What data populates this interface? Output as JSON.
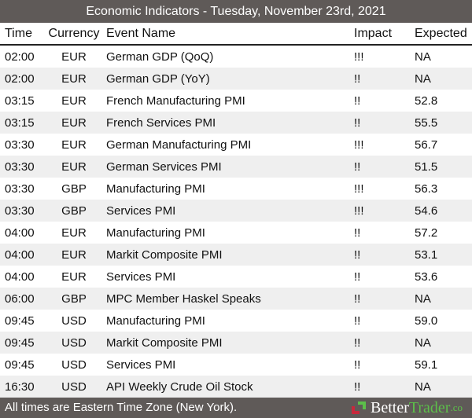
{
  "title": "Economic Indicators - Tuesday, November 23rd, 2021",
  "columns": {
    "time": "Time",
    "currency": "Currency",
    "event": "Event Name",
    "impact": "Impact",
    "expected": "Expected"
  },
  "rows": [
    {
      "time": "02:00",
      "currency": "EUR",
      "event": "German GDP (QoQ)",
      "impact": "!!!",
      "expected": "NA"
    },
    {
      "time": "02:00",
      "currency": "EUR",
      "event": "German GDP (YoY)",
      "impact": "!!",
      "expected": "NA"
    },
    {
      "time": "03:15",
      "currency": "EUR",
      "event": "French Manufacturing PMI",
      "impact": "!!",
      "expected": "52.8"
    },
    {
      "time": "03:15",
      "currency": "EUR",
      "event": "French Services PMI",
      "impact": "!!",
      "expected": "55.5"
    },
    {
      "time": "03:30",
      "currency": "EUR",
      "event": "German Manufacturing PMI",
      "impact": "!!!",
      "expected": "56.7"
    },
    {
      "time": "03:30",
      "currency": "EUR",
      "event": "German Services PMI",
      "impact": "!!",
      "expected": "51.5"
    },
    {
      "time": "03:30",
      "currency": "GBP",
      "event": "Manufacturing PMI",
      "impact": "!!!",
      "expected": "56.3"
    },
    {
      "time": "03:30",
      "currency": "GBP",
      "event": "Services PMI",
      "impact": "!!!",
      "expected": "54.6"
    },
    {
      "time": "04:00",
      "currency": "EUR",
      "event": "Manufacturing PMI",
      "impact": "!!",
      "expected": "57.2"
    },
    {
      "time": "04:00",
      "currency": "EUR",
      "event": "Markit Composite PMI",
      "impact": "!!",
      "expected": "53.1"
    },
    {
      "time": "04:00",
      "currency": "EUR",
      "event": "Services PMI",
      "impact": "!!",
      "expected": "53.6"
    },
    {
      "time": "06:00",
      "currency": "GBP",
      "event": "MPC Member Haskel Speaks",
      "impact": "!!",
      "expected": "NA"
    },
    {
      "time": "09:45",
      "currency": "USD",
      "event": "Manufacturing PMI",
      "impact": "!!",
      "expected": "59.0"
    },
    {
      "time": "09:45",
      "currency": "USD",
      "event": "Markit Composite PMI",
      "impact": "!!",
      "expected": "NA"
    },
    {
      "time": "09:45",
      "currency": "USD",
      "event": "Services PMI",
      "impact": "!!",
      "expected": "59.1"
    },
    {
      "time": "16:30",
      "currency": "USD",
      "event": "API Weekly Crude Oil Stock",
      "impact": "!!",
      "expected": "NA"
    }
  ],
  "footer": {
    "note": "All times are Eastern Time Zone (New York).",
    "logo": {
      "better": "Better",
      "trader": "Trader",
      "co": ".co"
    }
  },
  "colors": {
    "bar": "#5f5a58",
    "logo_green": "#5cbf4a",
    "logo_red": "#c8283c"
  }
}
